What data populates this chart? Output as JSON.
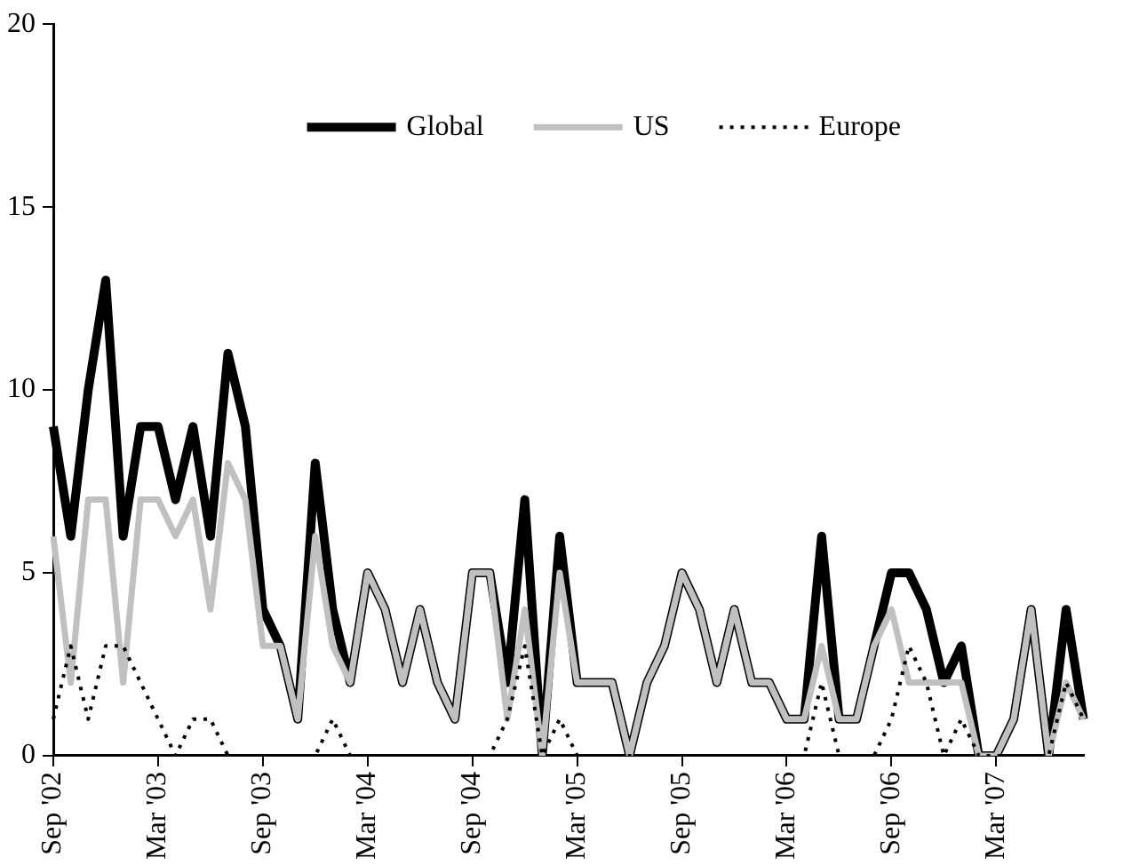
{
  "chart_data": {
    "type": "line",
    "categories": [
      "Sep '02",
      null,
      null,
      null,
      null,
      null,
      "Mar '03",
      null,
      null,
      null,
      null,
      null,
      "Sep '03",
      null,
      null,
      null,
      null,
      null,
      "Mar '04",
      null,
      null,
      null,
      null,
      null,
      "Sep '04",
      null,
      null,
      null,
      null,
      null,
      "Mar '05",
      null,
      null,
      null,
      null,
      null,
      "Sep '05",
      null,
      null,
      null,
      null,
      null,
      "Mar '06",
      null,
      null,
      null,
      null,
      null,
      "Sep '06",
      null,
      null,
      null,
      null,
      null,
      "Mar '07",
      null,
      null,
      null,
      null,
      null
    ],
    "series": [
      {
        "name": "Global",
        "color": "#000000",
        "values": [
          9,
          6,
          10,
          13,
          6,
          9,
          9,
          7,
          9,
          6,
          11,
          9,
          4,
          3,
          1,
          8,
          4,
          2,
          5,
          4,
          2,
          4,
          2,
          1,
          5,
          5,
          2,
          7,
          0,
          6,
          2,
          2,
          2,
          0,
          2,
          3,
          5,
          4,
          2,
          4,
          2,
          2,
          1,
          1,
          6,
          1,
          1,
          3,
          5,
          5,
          4,
          2,
          3,
          0,
          0,
          1,
          4,
          0,
          4,
          1
        ]
      },
      {
        "name": "US",
        "color": "#c0c0c0",
        "values": [
          6,
          2,
          7,
          7,
          2,
          7,
          7,
          6,
          7,
          4,
          8,
          7,
          3,
          3,
          1,
          6,
          3,
          2,
          5,
          4,
          2,
          4,
          2,
          1,
          5,
          5,
          1,
          4,
          0,
          5,
          2,
          2,
          2,
          0,
          2,
          3,
          5,
          4,
          2,
          4,
          2,
          2,
          1,
          1,
          3,
          1,
          1,
          3,
          4,
          2,
          2,
          2,
          2,
          0,
          0,
          1,
          4,
          0,
          2,
          1
        ]
      },
      {
        "name": "Europe",
        "color": "#000000",
        "line_style": "dotted",
        "values": [
          1,
          3,
          1,
          3,
          3,
          2,
          1,
          0,
          1,
          1,
          0,
          0,
          0,
          0,
          0,
          0,
          1,
          0,
          0,
          0,
          0,
          0,
          0,
          0,
          0,
          0,
          1,
          3,
          0,
          1,
          0,
          0,
          0,
          0,
          0,
          0,
          0,
          0,
          0,
          0,
          0,
          0,
          0,
          0,
          2,
          0,
          0,
          0,
          1,
          3,
          2,
          0,
          1,
          0,
          0,
          0,
          0,
          0,
          2,
          1
        ]
      }
    ],
    "ylim": [
      0,
      20
    ],
    "yticks": [
      0,
      5,
      10,
      15,
      20
    ],
    "grid": false,
    "legend": "top",
    "marker": "none",
    "line_style": "solid"
  }
}
